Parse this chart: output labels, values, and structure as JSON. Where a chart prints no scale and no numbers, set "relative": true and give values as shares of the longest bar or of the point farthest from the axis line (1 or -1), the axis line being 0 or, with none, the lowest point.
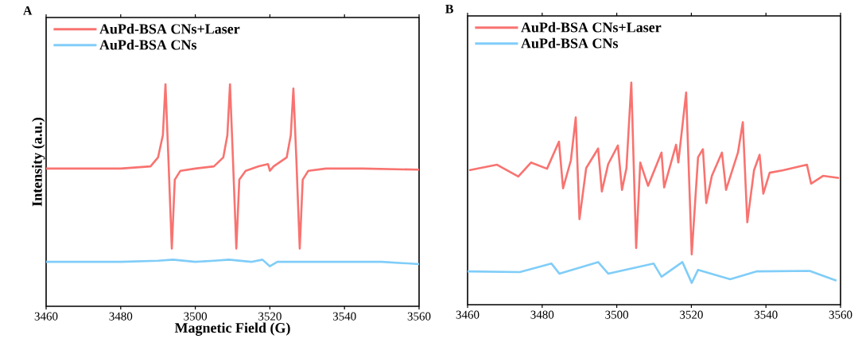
{
  "chart_data": [
    {
      "type": "line",
      "title": "A",
      "xlabel": "Magnetic Field (G)",
      "ylabel": "Intensity (a.u.)",
      "relative": true,
      "xlim": [
        3460,
        3560
      ],
      "xticks": [
        3460,
        3480,
        3500,
        3520,
        3540,
        3560
      ],
      "tick_labels": "x",
      "legend": "top left",
      "series": [
        {
          "name": "AuPd-BSA CNs+Laser",
          "color": "#f87370",
          "x": [
            3460,
            3470,
            3480,
            3488,
            3490,
            3491.3,
            3492,
            3492.8,
            3493.7,
            3494.5,
            3496,
            3500,
            3505,
            3507.5,
            3508.6,
            3509.3,
            3510.1,
            3511,
            3511.8,
            3513.5,
            3517,
            3519.5,
            3520,
            3521,
            3524.5,
            3525.6,
            3526.3,
            3527.1,
            3528,
            3528.8,
            3530.3,
            3535,
            3545,
            3560
          ],
          "values": [
            0.62,
            0.62,
            0.62,
            0.63,
            0.67,
            0.77,
            1.0,
            0.66,
            0.26,
            0.57,
            0.61,
            0.62,
            0.63,
            0.67,
            0.77,
            1.0,
            0.66,
            0.26,
            0.57,
            0.61,
            0.63,
            0.64,
            0.61,
            0.63,
            0.67,
            0.77,
            0.98,
            0.66,
            0.26,
            0.57,
            0.61,
            0.62,
            0.62,
            0.615
          ]
        },
        {
          "name": "AuPd-BSA CNs",
          "color": "#80cdf8",
          "x": [
            3460,
            3470,
            3480,
            3490,
            3494,
            3500,
            3505,
            3509,
            3515,
            3518,
            3520,
            3522,
            3530,
            3540,
            3550,
            3560
          ],
          "values": [
            0.2,
            0.2,
            0.2,
            0.205,
            0.21,
            0.2,
            0.205,
            0.21,
            0.2,
            0.21,
            0.18,
            0.2,
            0.2,
            0.2,
            0.2,
            0.19
          ]
        }
      ]
    },
    {
      "type": "line",
      "title": "B",
      "relative": true,
      "xlim": [
        3460,
        3560
      ],
      "xticks": [
        3460,
        3480,
        3500,
        3520,
        3540,
        3560
      ],
      "tick_labels": "x",
      "legend": "top left",
      "series": [
        {
          "name": "AuPd-BSA CNs+Laser",
          "color": "#f87370",
          "x": [
            3460.4,
            3467.9,
            3473.6,
            3477,
            3481.3,
            3484.5,
            3485.6,
            3487.7,
            3489,
            3490,
            3491.8,
            3495,
            3496,
            3497.7,
            3500.3,
            3501.4,
            3502.6,
            3503.9,
            3505.2,
            3506.3,
            3508.4,
            3512,
            3512.7,
            3515.9,
            3516.5,
            3518.6,
            3520.1,
            3521.8,
            3523.1,
            3524,
            3525.5,
            3528.2,
            3529.3,
            3532.5,
            3533.8,
            3535,
            3536.8,
            3538.3,
            3539.3,
            3541,
            3544.6,
            3551,
            3552.1,
            3555.3,
            3559.6
          ],
          "values": [
            0.605,
            0.63,
            0.577,
            0.64,
            0.612,
            0.734,
            0.524,
            0.65,
            0.843,
            0.385,
            0.615,
            0.703,
            0.51,
            0.633,
            0.717,
            0.517,
            0.615,
            1.0,
            0.255,
            0.64,
            0.535,
            0.685,
            0.528,
            0.72,
            0.64,
            0.955,
            0.227,
            0.664,
            0.7,
            0.458,
            0.58,
            0.685,
            0.517,
            0.685,
            0.822,
            0.371,
            0.605,
            0.675,
            0.5,
            0.594,
            0.605,
            0.63,
            0.545,
            0.58,
            0.57
          ]
        },
        {
          "name": "AuPd-BSA CNs",
          "color": "#80cdf8",
          "x": [
            3460,
            3474,
            3482.5,
            3484.6,
            3495,
            3497.7,
            3509.9,
            3512,
            3517.6,
            3520.1,
            3521.8,
            3530.4,
            3537.6,
            3551.7,
            3558.9
          ],
          "values": [
            0.15,
            0.147,
            0.185,
            0.14,
            0.192,
            0.14,
            0.185,
            0.126,
            0.192,
            0.098,
            0.157,
            0.115,
            0.15,
            0.152,
            0.108
          ]
        }
      ]
    }
  ]
}
